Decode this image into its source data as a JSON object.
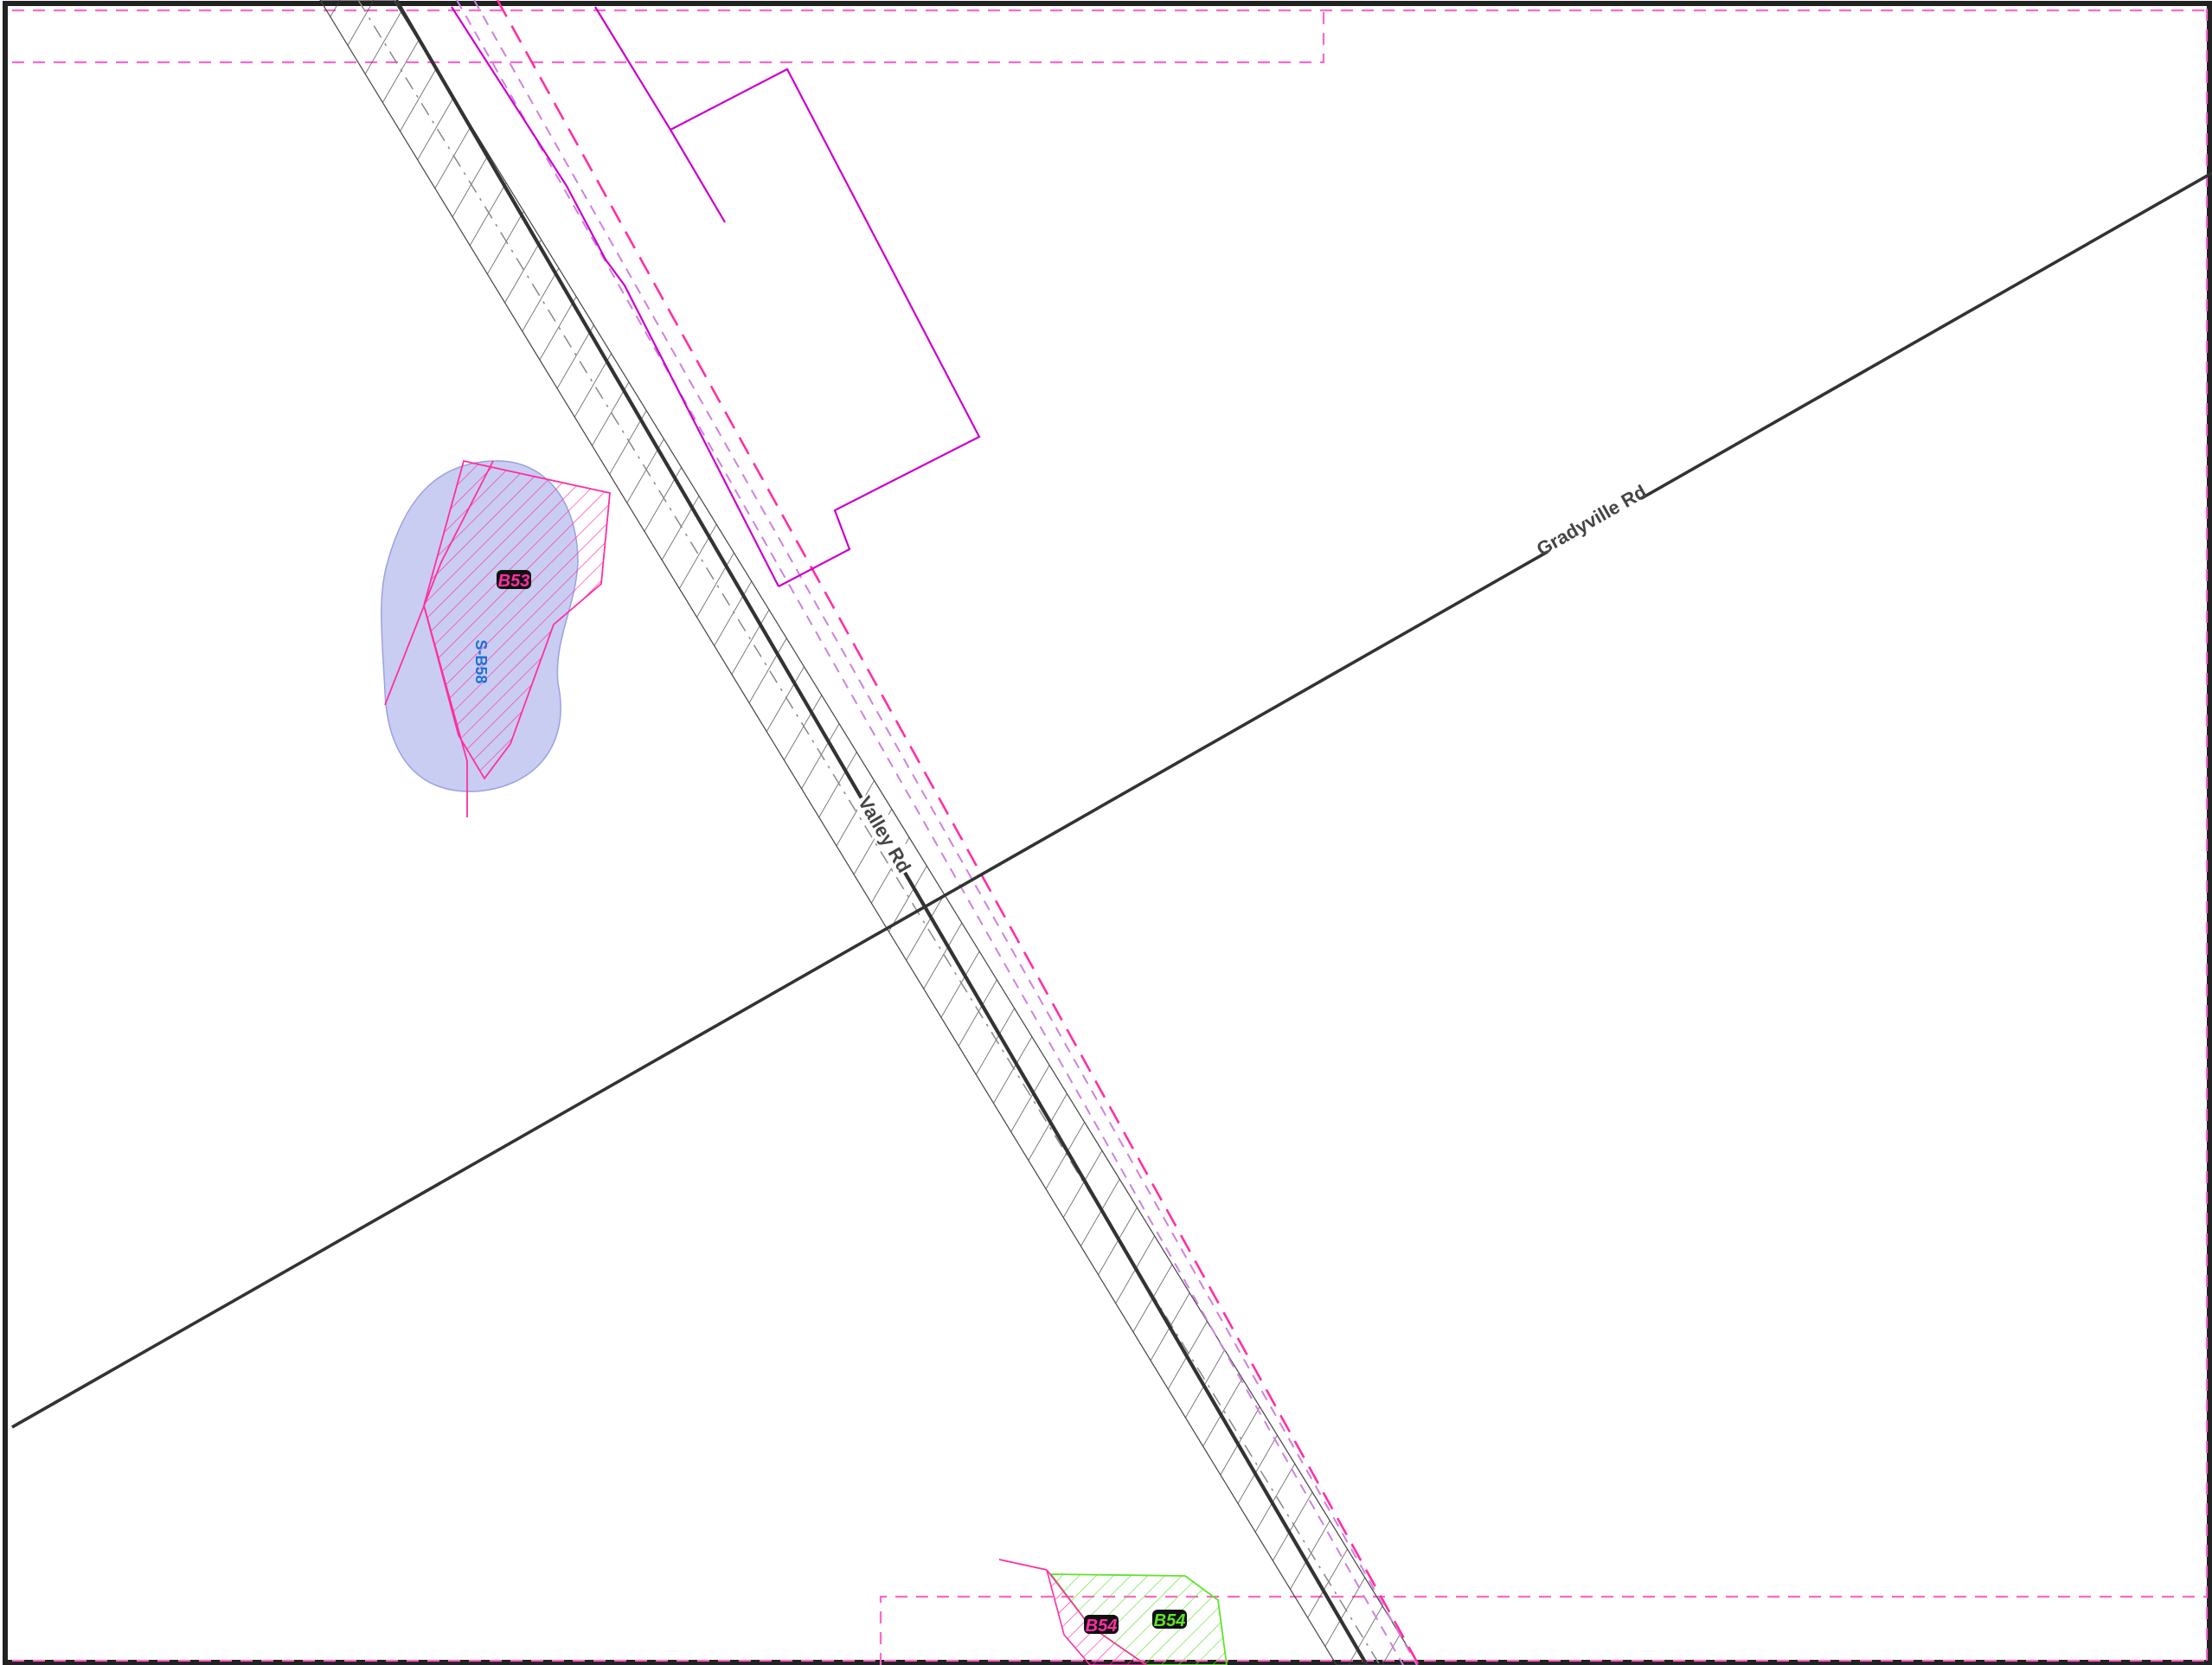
{
  "map": {
    "roads": [
      {
        "id": "gradyville",
        "name": "Gradyville Rd"
      },
      {
        "id": "valley",
        "name": "Valley Rd"
      }
    ],
    "features": [
      {
        "id": "stream-sb58",
        "label": "S-B58",
        "kind": "stream",
        "color": "#1e6fd9",
        "fill": "#c9cdf2"
      },
      {
        "id": "wetland-b53",
        "label": "B53",
        "kind": "wetland",
        "color": "#ff2fa3"
      },
      {
        "id": "wetland-b54-pink",
        "label": "B54",
        "kind": "wetland",
        "color": "#ff2fa3"
      },
      {
        "id": "wetland-b54-green",
        "label": "B54",
        "kind": "wetland",
        "color": "#5fe32b"
      }
    ],
    "colors": {
      "road": "#333333",
      "hatch_corridor": "#444444",
      "parcel": "#cc00cc",
      "dashed_boundary": "#ff66cc",
      "right_of_way": "#ff2fa3",
      "background": "#ffffff"
    }
  }
}
